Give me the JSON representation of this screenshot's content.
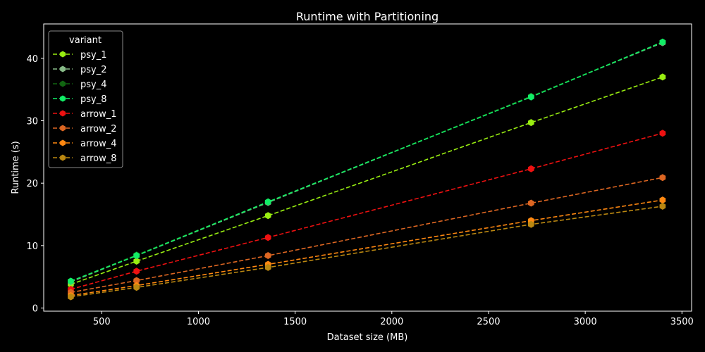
{
  "chart_data": {
    "type": "line",
    "title": "Runtime with Partitioning",
    "xlabel": "Dataset size (MB)",
    "ylabel": "Runtime (s)",
    "xlim": [
      200,
      3550
    ],
    "ylim": [
      -0.5,
      45.5
    ],
    "xticks": [
      500,
      1000,
      1500,
      2000,
      2500,
      3000,
      3500
    ],
    "yticks": [
      0,
      10,
      20,
      30,
      40
    ],
    "x": [
      340,
      680,
      1360,
      2720,
      3400
    ],
    "legend": {
      "title": "variant",
      "placement": "upper-left"
    },
    "grid": false,
    "series": [
      {
        "name": "psy_1",
        "color": "#99ee11",
        "values": [
          3.8,
          7.5,
          14.8,
          29.7,
          37.0
        ]
      },
      {
        "name": "psy_2",
        "color": "#88bb88",
        "values": [
          4.2,
          8.4,
          16.9,
          33.9,
          42.5
        ]
      },
      {
        "name": "psy_4",
        "color": "#116611",
        "values": [
          4.3,
          8.5,
          17.0,
          33.9,
          42.6
        ]
      },
      {
        "name": "psy_8",
        "color": "#11ee66",
        "values": [
          4.3,
          8.4,
          17.0,
          33.8,
          42.6
        ]
      },
      {
        "name": "arrow_1",
        "color": "#ee1111",
        "values": [
          3.0,
          5.9,
          11.3,
          22.3,
          28.0
        ]
      },
      {
        "name": "arrow_2",
        "color": "#dd6622",
        "values": [
          2.5,
          4.4,
          8.4,
          16.8,
          20.9
        ]
      },
      {
        "name": "arrow_4",
        "color": "#ff8811",
        "values": [
          2.0,
          3.6,
          7.0,
          14.0,
          17.3
        ]
      },
      {
        "name": "arrow_8",
        "color": "#bb8811",
        "values": [
          1.8,
          3.3,
          6.5,
          13.4,
          16.3
        ]
      }
    ]
  }
}
